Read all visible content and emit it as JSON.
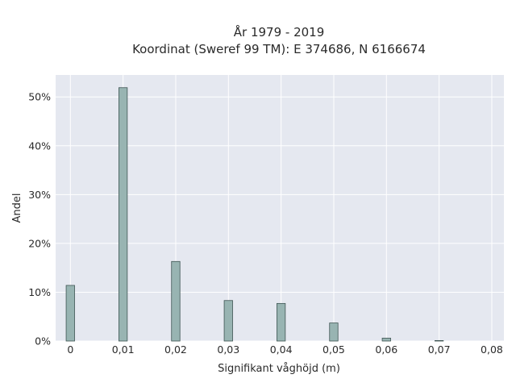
{
  "chart_data": {
    "type": "bar",
    "title_lines": [
      "År 1979 - 2019",
      "Koordinat (Sweref 99 TM): E 374686, N 6166674"
    ],
    "xlabel": "Signifikant våghöjd (m)",
    "ylabel": "Andel",
    "xlim": [
      -0.0028,
      0.0823
    ],
    "ylim": [
      0,
      0.545
    ],
    "x_ticks": [
      0,
      0.01,
      0.02,
      0.03,
      0.04,
      0.05,
      0.06,
      0.07,
      0.08
    ],
    "x_tick_labels": [
      "0",
      "0,01",
      "0,02",
      "0,03",
      "0,04",
      "0,05",
      "0,06",
      "0,07",
      "0,08"
    ],
    "y_ticks": [
      0,
      0.1,
      0.2,
      0.3,
      0.4,
      0.5
    ],
    "y_tick_labels": [
      "0%",
      "10%",
      "20%",
      "30%",
      "40%",
      "50%"
    ],
    "bar_width": 0.0016,
    "x": [
      0,
      0.01,
      0.02,
      0.03,
      0.04,
      0.05,
      0.06,
      0.07
    ],
    "values": [
      0.114,
      0.519,
      0.163,
      0.083,
      0.077,
      0.037,
      0.006,
      0.001
    ],
    "grid": true,
    "colors": {
      "bar_fill": "#98b4b2",
      "bar_stroke": "#3f5553",
      "plot_bg": "#e5e8f0",
      "grid": "#ffffff"
    }
  }
}
